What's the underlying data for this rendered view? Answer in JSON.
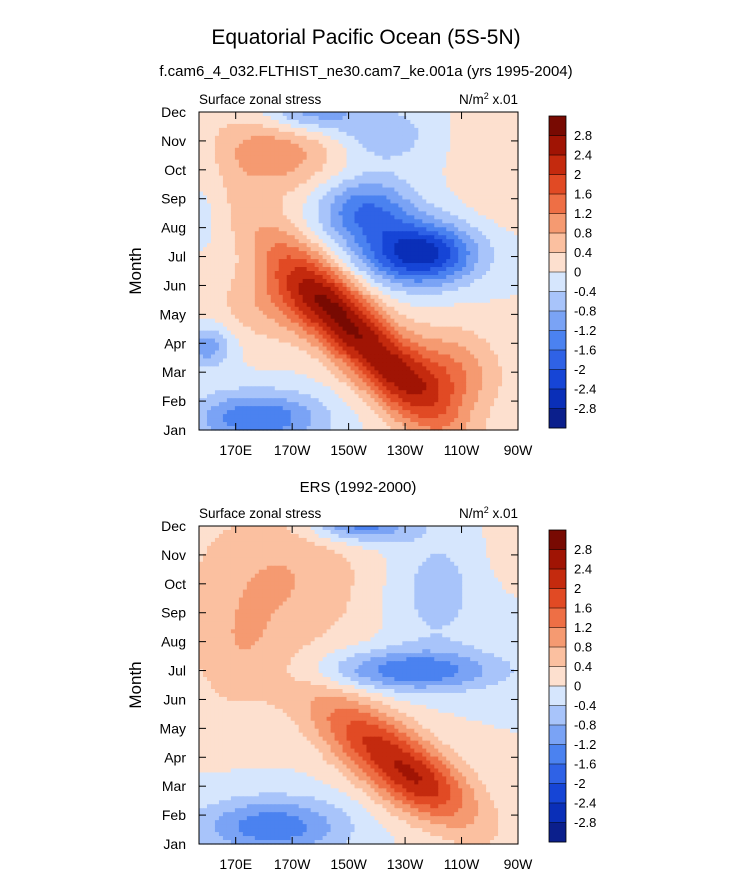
{
  "figure": {
    "title": "Equatorial Pacific Ocean (5S-5N)",
    "subtitle": "f.cam6_4_032.FLTHIST_ne30.cam7_ke.001a (yrs 1995-2004)"
  },
  "chart_data": [
    {
      "type": "heatmap",
      "panel_title": "",
      "left_string": "Surface zonal stress",
      "right_string_base": "N/m",
      "right_string_exp": "2",
      "right_string_tail": " x.01",
      "xlabel": "",
      "ylabel": "Month",
      "xlim": [
        157,
        270
      ],
      "ylim": [
        1,
        12
      ],
      "x_ticks": [
        {
          "value": 170,
          "label": "170E"
        },
        {
          "value": 190,
          "label": "170W"
        },
        {
          "value": 210,
          "label": "150W"
        },
        {
          "value": 230,
          "label": "130W"
        },
        {
          "value": 250,
          "label": "110W"
        },
        {
          "value": 270,
          "label": "90W"
        }
      ],
      "months": [
        "Jan",
        "Feb",
        "Mar",
        "Apr",
        "May",
        "Jun",
        "Jul",
        "Aug",
        "Sep",
        "Oct",
        "Nov",
        "Dec"
      ],
      "levels": [
        -2.8,
        -2.4,
        -2,
        -1.6,
        -1.2,
        -0.8,
        -0.4,
        0,
        0.4,
        0.8,
        1.2,
        1.6,
        2,
        2.4,
        2.8
      ],
      "colorbar_labels": [
        "2.8",
        "2.4",
        "2",
        "1.6",
        "1.2",
        "0.8",
        "0.4",
        "0",
        "-0.4",
        "-0.8",
        "-1.2",
        "-1.6",
        "-2",
        "-2.4",
        "-2.8"
      ],
      "features": [
        {
          "lon": 212,
          "month": 4.4,
          "amp": 2.7,
          "slon": 22,
          "smon": 1.1,
          "rot": -0.09
        },
        {
          "lon": 244,
          "month": 2.9,
          "amp": 1.3,
          "slon": 13,
          "smon": 1.1,
          "rot": 0
        },
        {
          "lon": 186,
          "month": 5.4,
          "amp": 0.8,
          "slon": 16,
          "smon": 1.0,
          "rot": 0
        },
        {
          "lon": 235,
          "month": 7.1,
          "amp": -2.7,
          "slon": 14,
          "smon": 0.75,
          "rot": 0
        },
        {
          "lon": 216,
          "month": 8.6,
          "amp": -1.6,
          "slon": 12,
          "smon": 0.8,
          "rot": 0
        },
        {
          "lon": 178,
          "month": 1.4,
          "amp": -1.6,
          "slon": 16,
          "smon": 0.65,
          "rot": 0
        },
        {
          "lon": 184,
          "month": 10.7,
          "amp": 1.1,
          "slon": 17,
          "smon": 1.1,
          "rot": 0
        },
        {
          "lon": 196,
          "month": 12.0,
          "amp": -1.3,
          "slon": 13,
          "smon": 0.55,
          "rot": 0
        },
        {
          "lon": 222,
          "month": 11.2,
          "amp": -0.7,
          "slon": 12,
          "smon": 0.7,
          "rot": 0
        },
        {
          "lon": 262,
          "month": 10.5,
          "amp": 0.3,
          "slon": 10,
          "smon": 2.0,
          "rot": 0
        },
        {
          "lon": 160,
          "month": 3.9,
          "amp": -1.1,
          "slon": 6,
          "smon": 0.5,
          "rot": 0
        },
        {
          "lon": 160,
          "month": 9.3,
          "amp": -0.3,
          "slon": 5,
          "smon": 1.2,
          "rot": 0
        }
      ]
    },
    {
      "type": "heatmap",
      "panel_title": "ERS (1992-2000)",
      "left_string": "Surface zonal stress",
      "right_string_base": "N/m",
      "right_string_exp": "2",
      "right_string_tail": " x.01",
      "xlabel": "",
      "ylabel": "Month",
      "xlim": [
        157,
        270
      ],
      "ylim": [
        1,
        12
      ],
      "x_ticks": [
        {
          "value": 170,
          "label": "170E"
        },
        {
          "value": 190,
          "label": "170W"
        },
        {
          "value": 210,
          "label": "150W"
        },
        {
          "value": 230,
          "label": "130W"
        },
        {
          "value": 250,
          "label": "110W"
        },
        {
          "value": 270,
          "label": "90W"
        }
      ],
      "months": [
        "Jan",
        "Feb",
        "Mar",
        "Apr",
        "May",
        "Jun",
        "Jul",
        "Aug",
        "Sep",
        "Oct",
        "Nov",
        "Dec"
      ],
      "levels": [
        -2.8,
        -2.4,
        -2,
        -1.6,
        -1.2,
        -0.8,
        -0.4,
        0,
        0.4,
        0.8,
        1.2,
        1.6,
        2,
        2.4,
        2.8
      ],
      "colorbar_labels": [
        "2.8",
        "2.4",
        "2",
        "1.6",
        "1.2",
        "0.8",
        "0.4",
        "0",
        "-0.4",
        "-0.8",
        "-1.2",
        "-1.6",
        "-2",
        "-2.4",
        "-2.8"
      ],
      "features": [
        {
          "lon": 226,
          "month": 3.9,
          "amp": 2.3,
          "slon": 20,
          "smon": 1.0,
          "rot": -0.06
        },
        {
          "lon": 236,
          "month": 2.9,
          "amp": 0.4,
          "slon": 10,
          "smon": 0.7,
          "rot": 0
        },
        {
          "lon": 232,
          "month": 7.0,
          "amp": -1.5,
          "slon": 22,
          "smon": 0.5,
          "rot": 0
        },
        {
          "lon": 183,
          "month": 1.6,
          "amp": -1.5,
          "slon": 18,
          "smon": 0.7,
          "rot": 0
        },
        {
          "lon": 214,
          "month": 12.1,
          "amp": -1.6,
          "slon": 12,
          "smon": 0.45,
          "rot": 0
        },
        {
          "lon": 240,
          "month": 9.8,
          "amp": -0.6,
          "slon": 13,
          "smon": 1.6,
          "rot": 0
        },
        {
          "lon": 186,
          "month": 10.2,
          "amp": 0.8,
          "slon": 24,
          "smon": 1.9,
          "rot": 0
        },
        {
          "lon": 170,
          "month": 7.3,
          "amp": 0.5,
          "slon": 12,
          "smon": 1.5,
          "rot": 0
        },
        {
          "lon": 266,
          "month": 11.4,
          "amp": 0.3,
          "slon": 6,
          "smon": 1.0,
          "rot": 0
        }
      ]
    }
  ]
}
